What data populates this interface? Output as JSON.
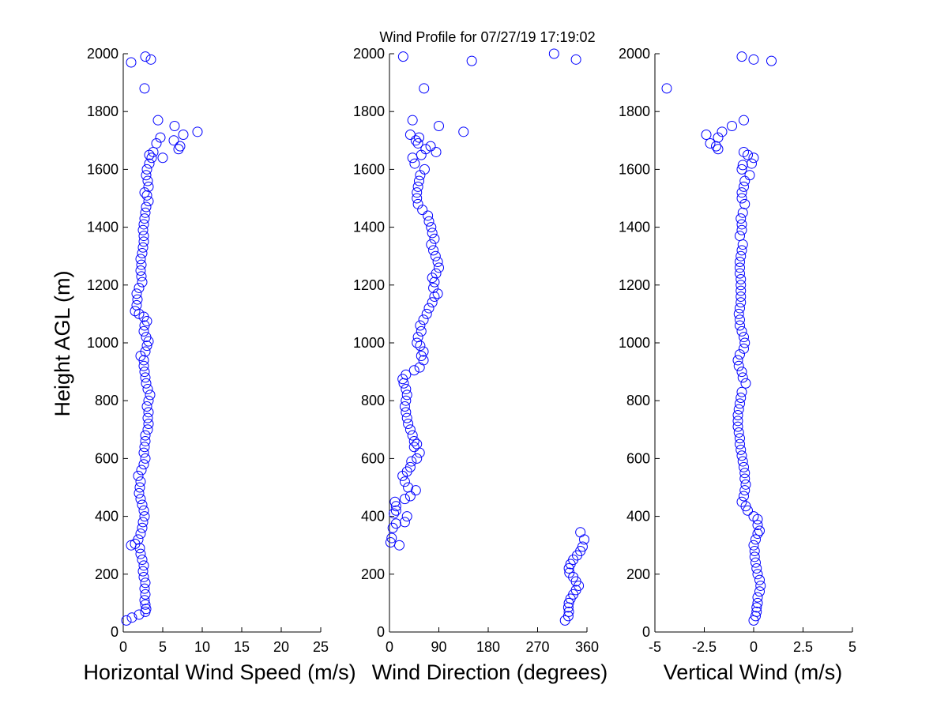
{
  "title": "Wind Profile for  07/27/19 17:19:02",
  "ylabel": "Height AGL (m)",
  "chart_data": [
    {
      "type": "scatter",
      "xlabel": "Horizontal Wind Speed (m/s)",
      "xlim": [
        0,
        25
      ],
      "ylim": [
        0,
        2000
      ],
      "xticks": [
        "0",
        "5",
        "10",
        "15",
        "20",
        "25"
      ],
      "yticks": [
        "0",
        "200",
        "400",
        "600",
        "800",
        "1000",
        "1200",
        "1400",
        "1600",
        "1800",
        "2000"
      ],
      "color": "#0000ff",
      "points": [
        [
          0.4,
          40
        ],
        [
          1.1,
          50
        ],
        [
          2.0,
          60
        ],
        [
          2.8,
          70
        ],
        [
          2.9,
          80
        ],
        [
          2.8,
          95
        ],
        [
          2.7,
          110
        ],
        [
          2.8,
          130
        ],
        [
          2.7,
          150
        ],
        [
          2.8,
          170
        ],
        [
          2.6,
          190
        ],
        [
          2.5,
          210
        ],
        [
          2.6,
          230
        ],
        [
          2.4,
          250
        ],
        [
          2.2,
          270
        ],
        [
          2.1,
          290
        ],
        [
          1.5,
          305
        ],
        [
          1.0,
          300
        ],
        [
          1.9,
          320
        ],
        [
          2.2,
          340
        ],
        [
          2.4,
          360
        ],
        [
          2.5,
          380
        ],
        [
          2.7,
          400
        ],
        [
          2.6,
          420
        ],
        [
          2.4,
          440
        ],
        [
          2.2,
          460
        ],
        [
          2.0,
          480
        ],
        [
          2.1,
          500
        ],
        [
          2.2,
          520
        ],
        [
          1.9,
          540
        ],
        [
          2.3,
          560
        ],
        [
          2.6,
          580
        ],
        [
          2.8,
          600
        ],
        [
          2.6,
          620
        ],
        [
          2.7,
          640
        ],
        [
          2.8,
          660
        ],
        [
          2.8,
          680
        ],
        [
          3.1,
          700
        ],
        [
          3.2,
          720
        ],
        [
          3.1,
          740
        ],
        [
          3.2,
          760
        ],
        [
          3.0,
          780
        ],
        [
          3.2,
          800
        ],
        [
          3.4,
          820
        ],
        [
          3.1,
          840
        ],
        [
          2.9,
          860
        ],
        [
          2.8,
          880
        ],
        [
          2.7,
          900
        ],
        [
          2.6,
          920
        ],
        [
          2.6,
          940
        ],
        [
          2.2,
          955
        ],
        [
          2.8,
          970
        ],
        [
          3.0,
          990
        ],
        [
          3.2,
          1005
        ],
        [
          2.9,
          1020
        ],
        [
          2.6,
          1040
        ],
        [
          2.7,
          1060
        ],
        [
          3.0,
          1075
        ],
        [
          2.6,
          1090
        ],
        [
          2.0,
          1100
        ],
        [
          1.5,
          1110
        ],
        [
          1.7,
          1130
        ],
        [
          1.8,
          1150
        ],
        [
          1.7,
          1170
        ],
        [
          2.0,
          1190
        ],
        [
          2.4,
          1210
        ],
        [
          2.3,
          1230
        ],
        [
          2.2,
          1250
        ],
        [
          2.3,
          1270
        ],
        [
          2.2,
          1290
        ],
        [
          2.4,
          1310
        ],
        [
          2.5,
          1330
        ],
        [
          2.6,
          1350
        ],
        [
          2.6,
          1370
        ],
        [
          2.5,
          1390
        ],
        [
          2.6,
          1410
        ],
        [
          2.7,
          1430
        ],
        [
          2.8,
          1450
        ],
        [
          2.9,
          1470
        ],
        [
          3.2,
          1490
        ],
        [
          3.0,
          1510
        ],
        [
          2.7,
          1520
        ],
        [
          3.2,
          1540
        ],
        [
          3.1,
          1560
        ],
        [
          2.9,
          1580
        ],
        [
          3.0,
          1600
        ],
        [
          3.3,
          1620
        ],
        [
          3.6,
          1640
        ],
        [
          3.3,
          1650
        ],
        [
          4.2,
          1690
        ],
        [
          4.7,
          1710
        ],
        [
          4.4,
          1770
        ],
        [
          6.5,
          1750
        ],
        [
          7.6,
          1720
        ],
        [
          9.4,
          1730
        ],
        [
          6.4,
          1700
        ],
        [
          7.0,
          1670
        ],
        [
          7.2,
          1680
        ],
        [
          5.0,
          1640
        ],
        [
          3.8,
          1660
        ],
        [
          2.7,
          1880
        ],
        [
          1.0,
          1970
        ],
        [
          2.8,
          1990
        ],
        [
          3.5,
          1980
        ]
      ]
    },
    {
      "type": "scatter",
      "xlabel": "Wind Direction (degrees)",
      "xlim": [
        0,
        360
      ],
      "ylim": [
        0,
        2000
      ],
      "xticks": [
        "0",
        "90",
        "180",
        "270",
        "360"
      ],
      "yticks": [
        "0",
        "200",
        "400",
        "600",
        "800",
        "1000",
        "1200",
        "1400",
        "1600",
        "1800",
        "2000"
      ],
      "color": "#0000ff",
      "points": [
        [
          320,
          40
        ],
        [
          326,
          55
        ],
        [
          327,
          70
        ],
        [
          326,
          85
        ],
        [
          327,
          100
        ],
        [
          330,
          115
        ],
        [
          335,
          130
        ],
        [
          340,
          145
        ],
        [
          345,
          160
        ],
        [
          340,
          175
        ],
        [
          335,
          190
        ],
        [
          328,
          205
        ],
        [
          327,
          220
        ],
        [
          330,
          235
        ],
        [
          335,
          250
        ],
        [
          342,
          265
        ],
        [
          348,
          280
        ],
        [
          352,
          295
        ],
        [
          355,
          320
        ],
        [
          348,
          345
        ],
        [
          2,
          310
        ],
        [
          18,
          300
        ],
        [
          4,
          325
        ],
        [
          6,
          360
        ],
        [
          12,
          375
        ],
        [
          28,
          380
        ],
        [
          32,
          400
        ],
        [
          8,
          410
        ],
        [
          12,
          420
        ],
        [
          12,
          435
        ],
        [
          10,
          450
        ],
        [
          28,
          460
        ],
        [
          38,
          470
        ],
        [
          48,
          490
        ],
        [
          34,
          500
        ],
        [
          28,
          520
        ],
        [
          24,
          540
        ],
        [
          32,
          555
        ],
        [
          38,
          570
        ],
        [
          40,
          590
        ],
        [
          50,
          600
        ],
        [
          55,
          620
        ],
        [
          45,
          640
        ],
        [
          50,
          650
        ],
        [
          45,
          660
        ],
        [
          42,
          680
        ],
        [
          38,
          700
        ],
        [
          34,
          720
        ],
        [
          32,
          740
        ],
        [
          30,
          760
        ],
        [
          28,
          780
        ],
        [
          30,
          800
        ],
        [
          32,
          820
        ],
        [
          30,
          840
        ],
        [
          26,
          860
        ],
        [
          24,
          875
        ],
        [
          30,
          890
        ],
        [
          45,
          905
        ],
        [
          55,
          915
        ],
        [
          62,
          940
        ],
        [
          58,
          955
        ],
        [
          62,
          970
        ],
        [
          56,
          990
        ],
        [
          50,
          1000
        ],
        [
          52,
          1020
        ],
        [
          58,
          1040
        ],
        [
          56,
          1060
        ],
        [
          62,
          1080
        ],
        [
          68,
          1100
        ],
        [
          72,
          1120
        ],
        [
          78,
          1140
        ],
        [
          82,
          1160
        ],
        [
          88,
          1170
        ],
        [
          80,
          1190
        ],
        [
          82,
          1210
        ],
        [
          78,
          1225
        ],
        [
          85,
          1240
        ],
        [
          90,
          1260
        ],
        [
          88,
          1280
        ],
        [
          84,
          1300
        ],
        [
          80,
          1320
        ],
        [
          76,
          1340
        ],
        [
          82,
          1360
        ],
        [
          78,
          1380
        ],
        [
          76,
          1400
        ],
        [
          72,
          1420
        ],
        [
          70,
          1440
        ],
        [
          60,
          1460
        ],
        [
          52,
          1480
        ],
        [
          50,
          1500
        ],
        [
          50,
          1520
        ],
        [
          52,
          1540
        ],
        [
          54,
          1560
        ],
        [
          56,
          1580
        ],
        [
          64,
          1600
        ],
        [
          46,
          1620
        ],
        [
          42,
          1640
        ],
        [
          58,
          1650
        ],
        [
          66,
          1670
        ],
        [
          75,
          1680
        ],
        [
          52,
          1690
        ],
        [
          48,
          1700
        ],
        [
          54,
          1710
        ],
        [
          38,
          1720
        ],
        [
          42,
          1770
        ],
        [
          90,
          1750
        ],
        [
          135,
          1730
        ],
        [
          85,
          1660
        ],
        [
          25,
          1990
        ],
        [
          63,
          1880
        ],
        [
          150,
          1975
        ],
        [
          300,
          2000
        ],
        [
          340,
          1980
        ]
      ]
    },
    {
      "type": "scatter",
      "xlabel": "Vertical Wind (m/s)",
      "xlim": [
        -5,
        5
      ],
      "ylim": [
        0,
        2000
      ],
      "xticks": [
        "-5",
        "-2.5",
        "0",
        "2.5",
        "5"
      ],
      "yticks": [
        "0",
        "200",
        "400",
        "600",
        "800",
        "1000",
        "1200",
        "1400",
        "1600",
        "1800",
        "2000"
      ],
      "color": "#0000ff",
      "points": [
        [
          0.0,
          40
        ],
        [
          0.1,
          55
        ],
        [
          0.15,
          70
        ],
        [
          0.15,
          85
        ],
        [
          0.2,
          100
        ],
        [
          0.2,
          120
        ],
        [
          0.3,
          140
        ],
        [
          0.35,
          160
        ],
        [
          0.3,
          180
        ],
        [
          0.2,
          200
        ],
        [
          0.15,
          220
        ],
        [
          0.1,
          240
        ],
        [
          0.05,
          260
        ],
        [
          0.05,
          280
        ],
        [
          0.0,
          300
        ],
        [
          0.1,
          320
        ],
        [
          0.2,
          340
        ],
        [
          0.3,
          350
        ],
        [
          0.2,
          370
        ],
        [
          0.2,
          390
        ],
        [
          0.0,
          400
        ],
        [
          -0.3,
          420
        ],
        [
          -0.4,
          435
        ],
        [
          -0.6,
          450
        ],
        [
          -0.5,
          470
        ],
        [
          -0.45,
          490
        ],
        [
          -0.4,
          510
        ],
        [
          -0.45,
          530
        ],
        [
          -0.45,
          550
        ],
        [
          -0.5,
          570
        ],
        [
          -0.55,
          590
        ],
        [
          -0.6,
          610
        ],
        [
          -0.65,
          630
        ],
        [
          -0.7,
          650
        ],
        [
          -0.7,
          670
        ],
        [
          -0.75,
          690
        ],
        [
          -0.8,
          710
        ],
        [
          -0.8,
          730
        ],
        [
          -0.8,
          750
        ],
        [
          -0.75,
          770
        ],
        [
          -0.7,
          790
        ],
        [
          -0.65,
          810
        ],
        [
          -0.6,
          830
        ],
        [
          -0.4,
          860
        ],
        [
          -0.55,
          880
        ],
        [
          -0.6,
          900
        ],
        [
          -0.75,
          920
        ],
        [
          -0.8,
          940
        ],
        [
          -0.7,
          960
        ],
        [
          -0.5,
          980
        ],
        [
          -0.45,
          1000
        ],
        [
          -0.5,
          1020
        ],
        [
          -0.6,
          1040
        ],
        [
          -0.7,
          1060
        ],
        [
          -0.7,
          1080
        ],
        [
          -0.75,
          1100
        ],
        [
          -0.7,
          1120
        ],
        [
          -0.65,
          1140
        ],
        [
          -0.65,
          1160
        ],
        [
          -0.65,
          1180
        ],
        [
          -0.65,
          1200
        ],
        [
          -0.65,
          1220
        ],
        [
          -0.7,
          1240
        ],
        [
          -0.7,
          1260
        ],
        [
          -0.7,
          1280
        ],
        [
          -0.65,
          1300
        ],
        [
          -0.6,
          1320
        ],
        [
          -0.55,
          1340
        ],
        [
          -0.7,
          1370
        ],
        [
          -0.6,
          1390
        ],
        [
          -0.6,
          1410
        ],
        [
          -0.65,
          1430
        ],
        [
          -0.55,
          1450
        ],
        [
          -0.45,
          1480
        ],
        [
          -0.6,
          1500
        ],
        [
          -0.6,
          1520
        ],
        [
          -0.5,
          1540
        ],
        [
          -0.45,
          1560
        ],
        [
          -0.2,
          1580
        ],
        [
          -0.6,
          1600
        ],
        [
          -0.55,
          1615
        ],
        [
          -0.1,
          1620
        ],
        [
          0.0,
          1640
        ],
        [
          -0.3,
          1650
        ],
        [
          -0.5,
          1660
        ],
        [
          -1.1,
          1750
        ],
        [
          -1.6,
          1730
        ],
        [
          -1.8,
          1710
        ],
        [
          -2.2,
          1690
        ],
        [
          -2.4,
          1720
        ],
        [
          -1.9,
          1680
        ],
        [
          -1.8,
          1670
        ],
        [
          -0.5,
          1770
        ],
        [
          -4.4,
          1880
        ],
        [
          -0.6,
          1990
        ],
        [
          0.0,
          1980
        ],
        [
          0.9,
          1975
        ]
      ]
    }
  ]
}
